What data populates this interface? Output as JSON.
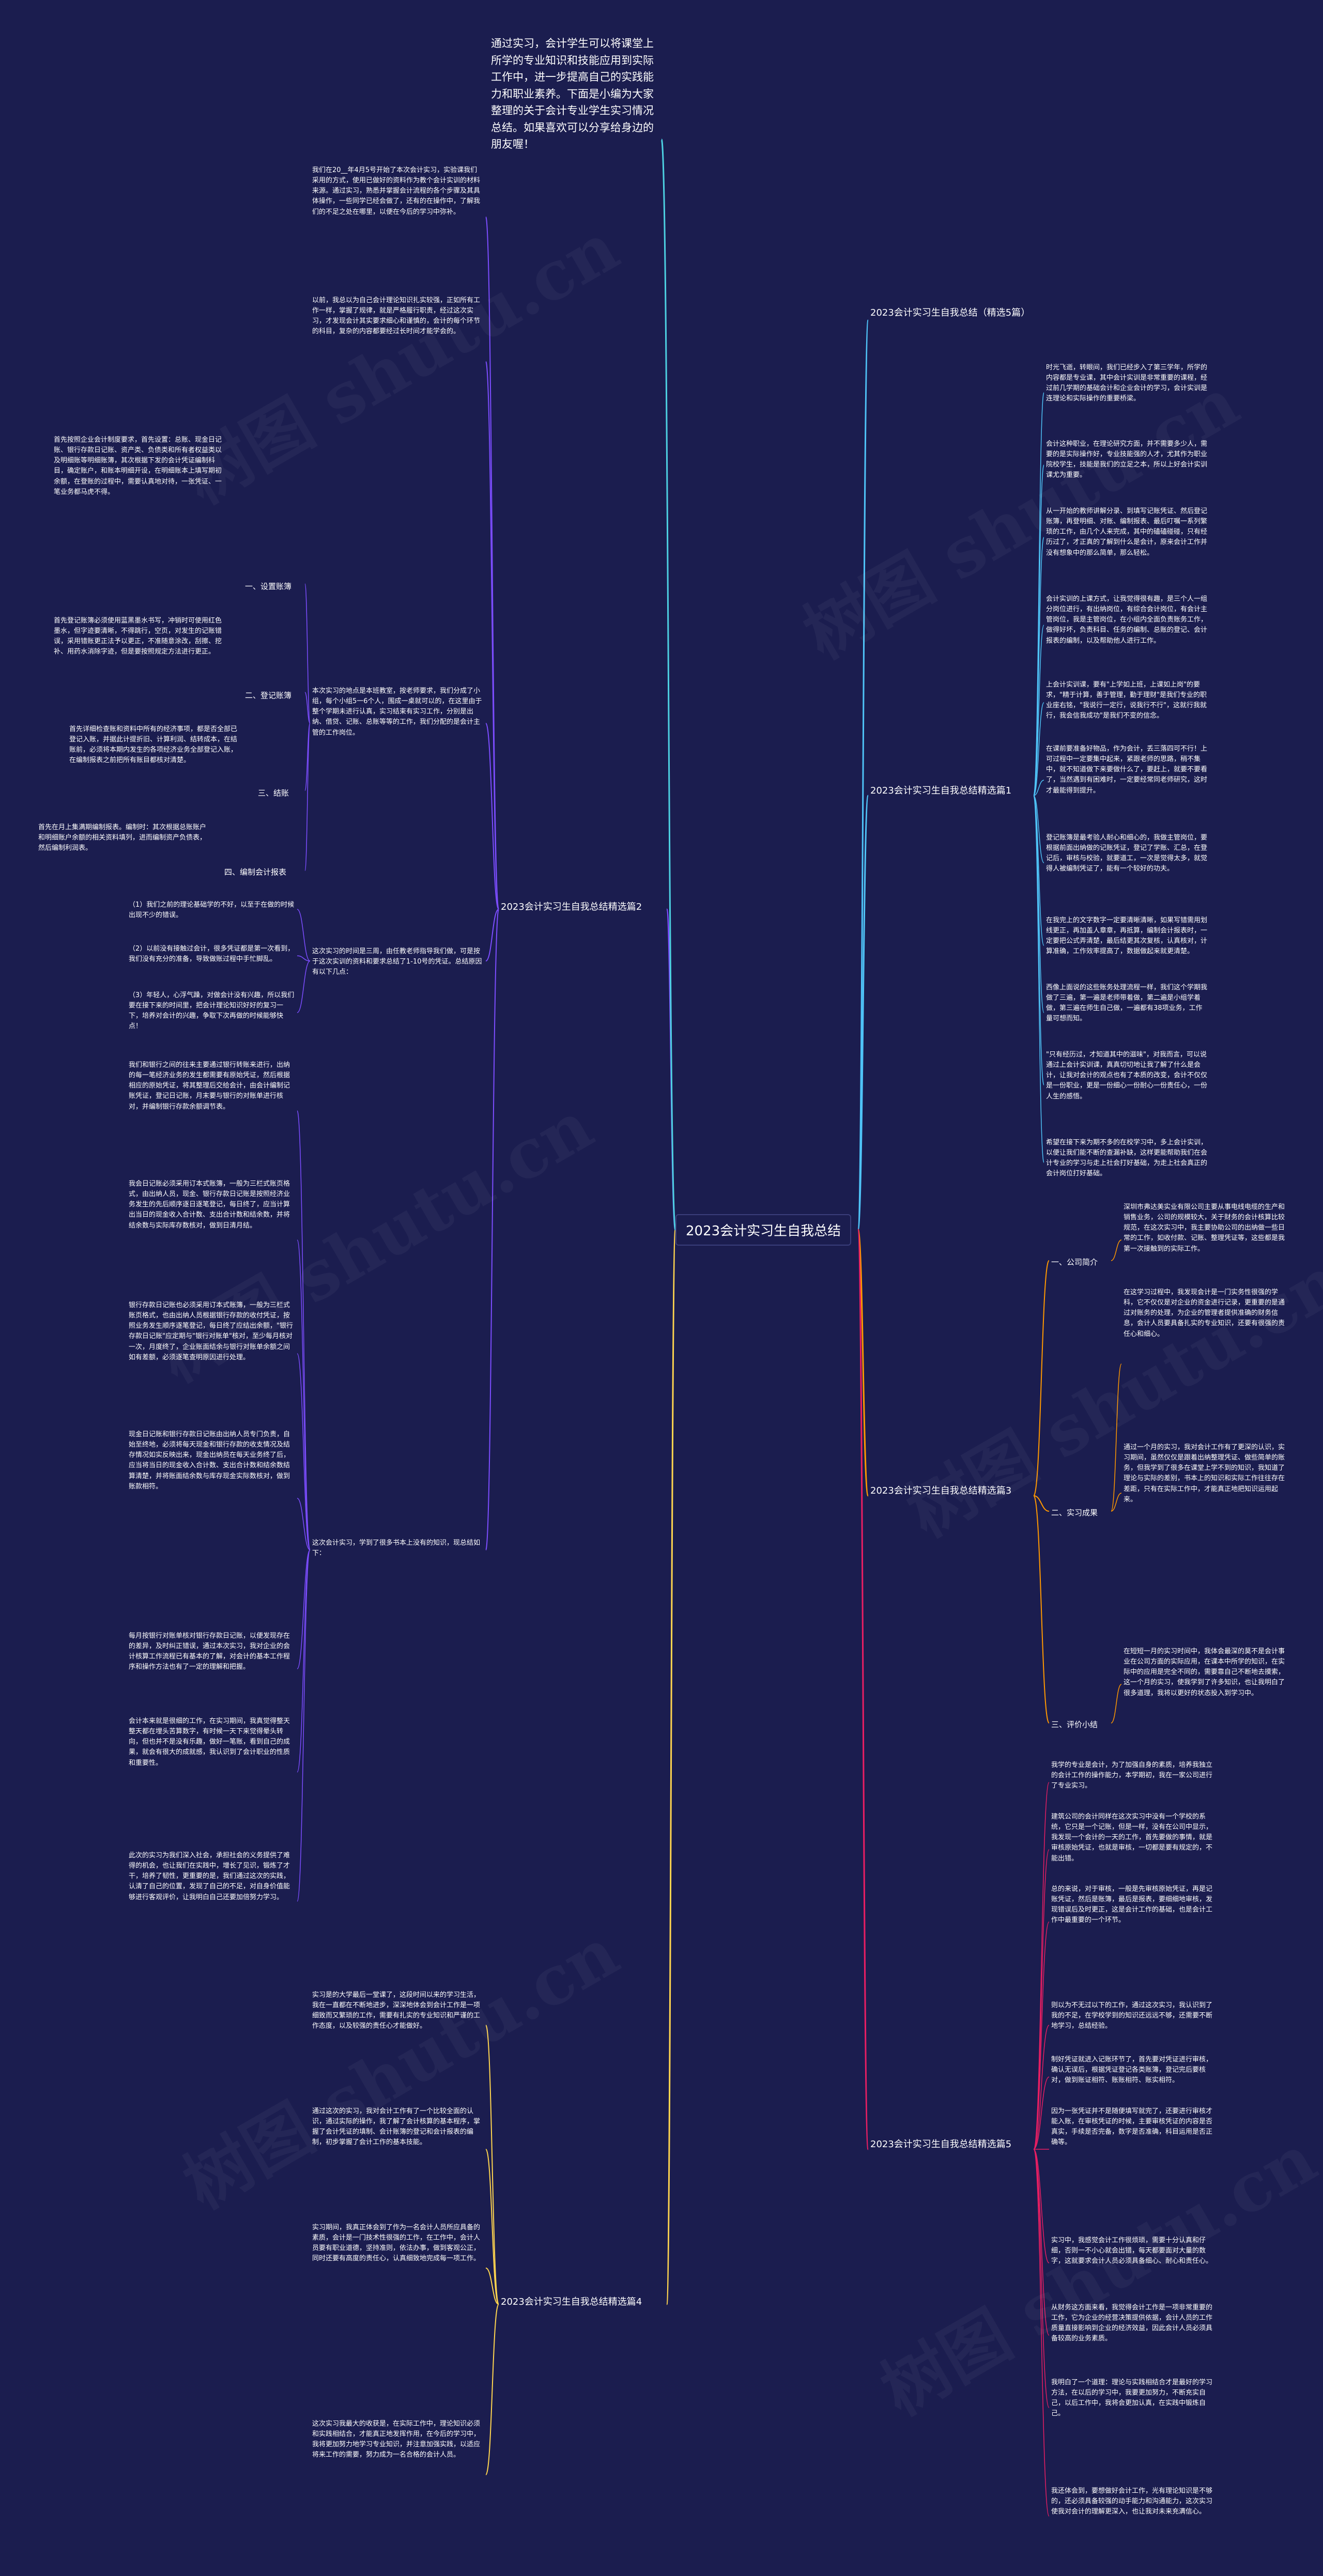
{
  "root": {
    "title": "2023会计实习生自我总结"
  },
  "colors": {
    "background": "#1b1d4f",
    "branch1": "#4fc3f7",
    "branch2": "#7c4dff",
    "branch3": "#ff9800",
    "branch4": "#ffd54f",
    "branch5": "#e91e63",
    "intro": "#4dd0e1"
  },
  "intro": {
    "text": "通过实习，会计学生可以将课堂上所学的专业知识和技能应用到实际工作中，进一步提高自己的实践能力和职业素养。下面是小编为大家整理的关于会计专业学生实习情况总结。如果喜欢可以分享给身边的朋友喔！"
  },
  "watermark": "树图 shutu.cn",
  "branch_top": {
    "title": "2023会计实习生自我总结（精选5篇）"
  },
  "branch1": {
    "title": "2023会计实习生自我总结精选篇1",
    "items": [
      "时光飞逝，转眼间，我们已经步入了第三学年，所学的内容都是专业课，其中会计实训是非常重要的课程，经过前几学期的基础会计和企业会计的学习，会计实训是连理论和实际操作的重要桥梁。",
      "会计这种职业，在理论研究方面，并不需要多少人，需要的是实际操作好，专业技能强的人才，尤其作为职业院校学生，技能是我们的立足之本，所以上好会计实训课尤为重要。",
      "从一开始的教师讲解分录、到填写记账凭证、然后登记账簿，再登明细、对账、编制报表、最后叮嘱一系列繁琐的工作，由几个人来完成，其中的磕磕碰碰，只有经历过了，才正真的了解到什么是会计，原来会计工作并没有想象中的那么简单，那么轻松。",
      "会计实训的上课方式，让我觉得很有趣，是三个人一组分岗位进行，有出纳岗位，有综合会计岗位，有会计主管岗位，我是主管岗位，在小组内全面负责账务工作，做得好坏，负责科目、任务的编制、总账的登记、会计报表的编制，以及帮助他人进行工作。",
      "上会计实训课，要有\"上学如上班，上课如上岗\"的要求，\"精于计算，善于管理，勤于理财\"是我们专业的职业座右铭，\"我说行一定行，说我行不行\"，这就行我就行，我会信我成功\"是我们不变的信念。",
      "在课前要准备好物品，作为会计，丢三落四可不行！上可过程中一定要集中起来，紧跟老师的思路，稍不集中，就不知道做下来要做什么了，要赶上，就要不要看了，当然遇到有困难时，一定要经常同老师研究，这时才最能得到提升。",
      "登记账簿是最考验人耐心和细心的，我做主管岗位，要根据前面出纳做的记账凭证，登记了学账、汇总，在登记后，审核与校验，就要道工，一次是觉得太多，就觉得人被编制凭证了，能有一个较好的功夫。",
      "在我完上的文字数字一定要清晰清晰，如果写错需用划线更正，再加盖人章章，再抵算，编制会计报表时，一定要把公式弄清楚，最后结更其次复核，认真核对，计算准确，工作效率提高了，数据做起来就更清楚。",
      "西像上面说的这些账务处理流程一样，我们这个学期我做了三遍，第一遍是老师带着做，第二遍是小组学着做，第三遍在师生自己做，一遍都有38项业务，工作量可想而知。",
      "\"只有经历过，才知道其中的滋味\"，对我而言，可以说通过上会计实训课，真真切切地让我了解了什么是会计，让我对会计的观点也有了本质的改变，会计不仅仅是一份职业，更是一份细心一份耐心一份责任心，一份人生的感悟。",
      "希望在接下来为期不多的在校学习中，多上会计实训，以便让我们能不断的查漏补缺，这样更能帮助我们在会计专业的学习与走上社会打好基础，为走上社会真正的会计岗位打好基础。"
    ]
  },
  "branch2": {
    "title": "2023会计实习生自我总结精选篇2",
    "para1": "我们在20__年4月5号开始了本次会计实习，实验课我们采用的方式，使用已做好的资料作为教个会计实训的材料来源。通过实习，熟悉并掌握会计流程的各个步骤及其具体操作，一些同学已经会做了，还有的在操作中，了解我们的不足之处在哪里，以便在今后的学习中弥补。",
    "para2": "以前，我总以为自己会计理论知识扎实较强，正如所有工作一样，掌握了规律，就是严格履行职责，经过这次实习，才发现会计其实要求细心和谨慎的，会计的每个环节的科目，复杂的内容都要经过长时间才能学会的。",
    "para3": "本次实习的地点是本班教室，按老师要求，我们分成了小组，每个小组5一6个人，围成一桌就可以的，在这里由于整个学期未进行认真，实习结束有实习工作，分别是出纳、借贷、记账、总账等等的工作，我们分配的是会计主管的工作岗位。",
    "para4": "这次实习的时间是三周，由任教老师指导我们做，可是按于这次实训的资料和要求总结了1-10号的凭证。总结原因有以下几点：",
    "subs": [
      {
        "label": "一、设置账簿",
        "text": "首先按照企业会计制度要求，首先设置：总账、现金日记账、银行存款日记账、资产类、负债类和所有者权益类以及明细账等明细账簿，其次根据下发的会计凭证编制科目，确定账户，和账本明细开设，在明细账本上填写期初余额，在登账的过程中，需要认真地对待，一张凭证、一笔业务都马虎不得。"
      },
      {
        "label": "二、登记账簿",
        "text": "首先登记账簿必须使用蓝黑墨水书写，冲销时可使用红色墨水，但字迹要清晰，不得跳行，空页，对发生的记账错误，采用错账更正法予以更正，不准随意涂改，刮擦、挖补、用药水消除字迹，但是要按照规定方法进行更正。"
      },
      {
        "label": "三、结账",
        "text": "首先详细检查账和资料中所有的经济事项，都是否全部已登记入账，并据此计提折旧、计算利润、结转成本，在结账前，必须将本期内发生的各项经济业务全部登记入账，在编制报表之前把所有账目都核对清楚。"
      },
      {
        "label": "四、编制会计报表",
        "text": "首先在月上集满期编制报表。编制时：其次根据总账账户和明细账户余额的相关资料填列，进而编制资产负债表，然后编制利润表。"
      }
    ],
    "numbered": [
      "（1）我们之前的理论基础学的不好，以至于在做的时候出现不少的错误。",
      "（2）以前没有接触过会计，很多凭证都是第一次看到，我们没有充分的准备，导致做账过程中手忙脚乱。",
      "（3）年轻人，心浮气躁，对做会计没有兴趣，所以我们要在接下来的时间里，把会计理论知识好好的复习一下，培养对会计的兴趣，争取下次再做的时候能够快点！"
    ],
    "para5": "这次会计实习，学到了很多书本上没有的知识，现总结如下：",
    "items": [
      "我们和银行之间的往来主要通过银行转账来进行，出纳的每一笔经济业务的发生都需要有原始凭证，然后根据相应的原始凭证，将其整理后交给会计，由会计编制记账凭证，登记日记账，月末要与银行的对账单进行核对，并编制银行存款余额调节表。",
      "我会日记账必须采用订本式账簿，一般为三栏式账页格式，由出纳人员，现金、银行存款日记账是按照经济业务发生的先后顺序逐日逐笔登记，每日终了，应当计算出当日的现金收入合计数、支出合计数和结余数，并将结余数与实际库存数核对，做到日清月结。",
      "银行存款日记账也必须采用订本式账簿，一般为三栏式账页格式，也由出纳人员根据银行存款的收付凭证，按照业务发生顺序逐笔登记，每日终了应结出余额，\"银行存款日记账\"应定期与\"银行对账单\"核对，至少每月核对一次，月度终了，企业账面结余与银行对账单余额之间如有差额，必须逐笔查明原因进行处理。",
      "现金日记账和银行存款日记账由出纳人员专门负责，自始至终地，必须将每天现金和银行存款的收支情况及结存情况如实反映出来，现金出纳员在每天业务终了后，应当将当日的现金收入合计数、支出合计数和结余数结算清楚，并将账面结余数与库存现金实际数核对，做到账款相符。",
      "每月按银行对账单核对银行存款日记账，以便发现存在的差异，及时纠正错误，通过本次实习，我对企业的会计核算工作流程已有基本的了解，对会计的基本工作程序和操作方法也有了一定的理解和把握。",
      "会计本来就是很细的工作，在实习期间，我真觉得整天整天都在埋头苦算数字，有时候一天下来觉得晕头转向，但也并不是没有乐趣，做好一笔账，看到自己的成果，就会有很大的成就感，我认识到了会计职业的性质和重要性。",
      "此次的实习为我们深入社会，承担社会的义务提供了难得的机会，也让我们在实践中，增长了见识，锻炼了才干，培养了韧性，更重要的是，我们通过这次的实践，认清了自己的位置，发现了自己的不足，对自身价值能够进行客观评价，让我明白自己还要加倍努力学习。"
    ]
  },
  "branch3": {
    "title": "2023会计实习生自我总结精选篇3",
    "subs": [
      {
        "label": "一、公司简介",
        "text": "深圳市弗达美实业有限公司主要从事电线电缆的生产和销售业务，公司的规模较大，关于财务的会计核算比较规范，在这次实习中，我主要协助公司的出纳做一些日常的工作，如收付款、记账、整理凭证等，这些都是我第一次接触到的实际工作。"
      },
      {
        "label": "二、实习成果",
        "texts": [
          "在这学习过程中，我发现会计是一门实务性很强的学科，它不仅仅是对企业的资金进行记录，更重要的是通过对账务的处理，为企业的管理者提供准确的财务信息，会计人员要具备扎实的专业知识，还要有很强的责任心和细心。",
          "通过一个月的实习，我对会计工作有了更深的认识，实习期间，虽然仅仅是跟着出纳整理凭证、做些简单的账务，但我学到了很多在课堂上学不到的知识，我知道了理论与实际的差别，书本上的知识和实际工作往往存在差距，只有在实际工作中，才能真正地把知识运用起来。"
        ]
      },
      {
        "label": "三、评价小结",
        "text": "在短短一月的实习时间中，我体会最深的莫不是会计事业在公司方面的实际应用，在课本中所学的知识，在实际中的应用是完全不同的，需要靠自己不断地去摸索，这一个月的实习，使我学到了许多知识，也让我明白了很多道理，我将以更好的状态投入到学习中。"
      }
    ]
  },
  "branch4": {
    "title": "2023会计实习生自我总结精选篇4",
    "items": [
      "实习是的大学最后一堂课了，这段时间以来的学习生活，我在一直都在不断地进步，深深地体会到会计工作是一项细致而又繁琐的工作，需要有扎实的专业知识和严谨的工作态度，以及较强的责任心才能做好。",
      "通过这次的实习，我对会计工作有了一个比较全面的认识，通过实际的操作，我了解了会计核算的基本程序，掌握了会计凭证的填制、会计账簿的登记和会计报表的编制，初步掌握了会计工作的基本技能。",
      "实习期间，我真正体会到了作为一名会计人员所应具备的素质，会计是一门技术性很强的工作，在工作中，会计人员要有职业道德，坚持准则，依法办事，做到客观公正，同时还要有高度的责任心，认真细致地完成每一项工作。",
      "这次实习我最大的收获是，在实际工作中，理论知识必须和实践相结合，才能真正地发挥作用，在今后的学习中，我将更加努力地学习专业知识，并注意加强实践，以适应将来工作的需要，努力成为一名合格的会计人员。"
    ]
  },
  "branch5": {
    "title": "2023会计实习生自我总结精选篇5",
    "items": [
      "我学的专业是会计，为了加强自身的素质，培养我独立的会计工作的操作能力，本学期初，我在一家公司进行了专业实习。",
      "建筑公司的会计同样在这次实习中没有一个学校的系统，它只是一个记账，但是一样，没有在公司中显示，我发现一个会计的一天的工作，首先要做的事情，就是审核原始凭证，也就是审核，一切都是要有规定的，不能出错。",
      "总的来说，对于审核，一般是先审核原始凭证，再是记账凭证，然后是账簿，最后是报表，要细细地审核，发现错误后及时更正，这是会计工作的基础，也是会计工作中最重要的一个环节。",
      "则以为不无过以下的工作，通过这次实习，我认识到了我的不足，在学校学到的知识还远远不够，还需要不断地学习，总结经验。",
      "制好凭证就进入记账环节了，首先要对凭证进行审核，确认无误后，根据凭证登记各类账簿，登记完后要核对，做到账证相符、账账相符、账实相符。",
      "因为一张凭证并不是随便填写就完了，还要进行审核才能入账，在审核凭证的时候，主要审核凭证的内容是否真实，手续是否完备，数字是否准确，科目运用是否正确等。",
      "实习中，我感觉会计工作很烦琐，需要十分认真和仔细，否则一不小心就会出错，每天都要面对大量的数字，这就要求会计人员必须具备细心、耐心和责任心。",
      "从财务这方面来看，我觉得会计工作是一项非常重要的工作，它为企业的经营决策提供依据，会计人员的工作质量直接影响到企业的经济效益，因此会计人员必须具备较高的业务素质。",
      "我明白了一个道理：理论与实践相结合才是最好的学习方法，在以后的学习中，我要更加努力，不断充实自己，以后工作中，我将会更加认真，在实践中锻炼自己。",
      "我还体会到，要想做好会计工作，光有理论知识是不够的，还必须具备较强的动手能力和沟通能力，这次实习使我对会计的理解更深入，也让我对未来充满信心。"
    ]
  }
}
